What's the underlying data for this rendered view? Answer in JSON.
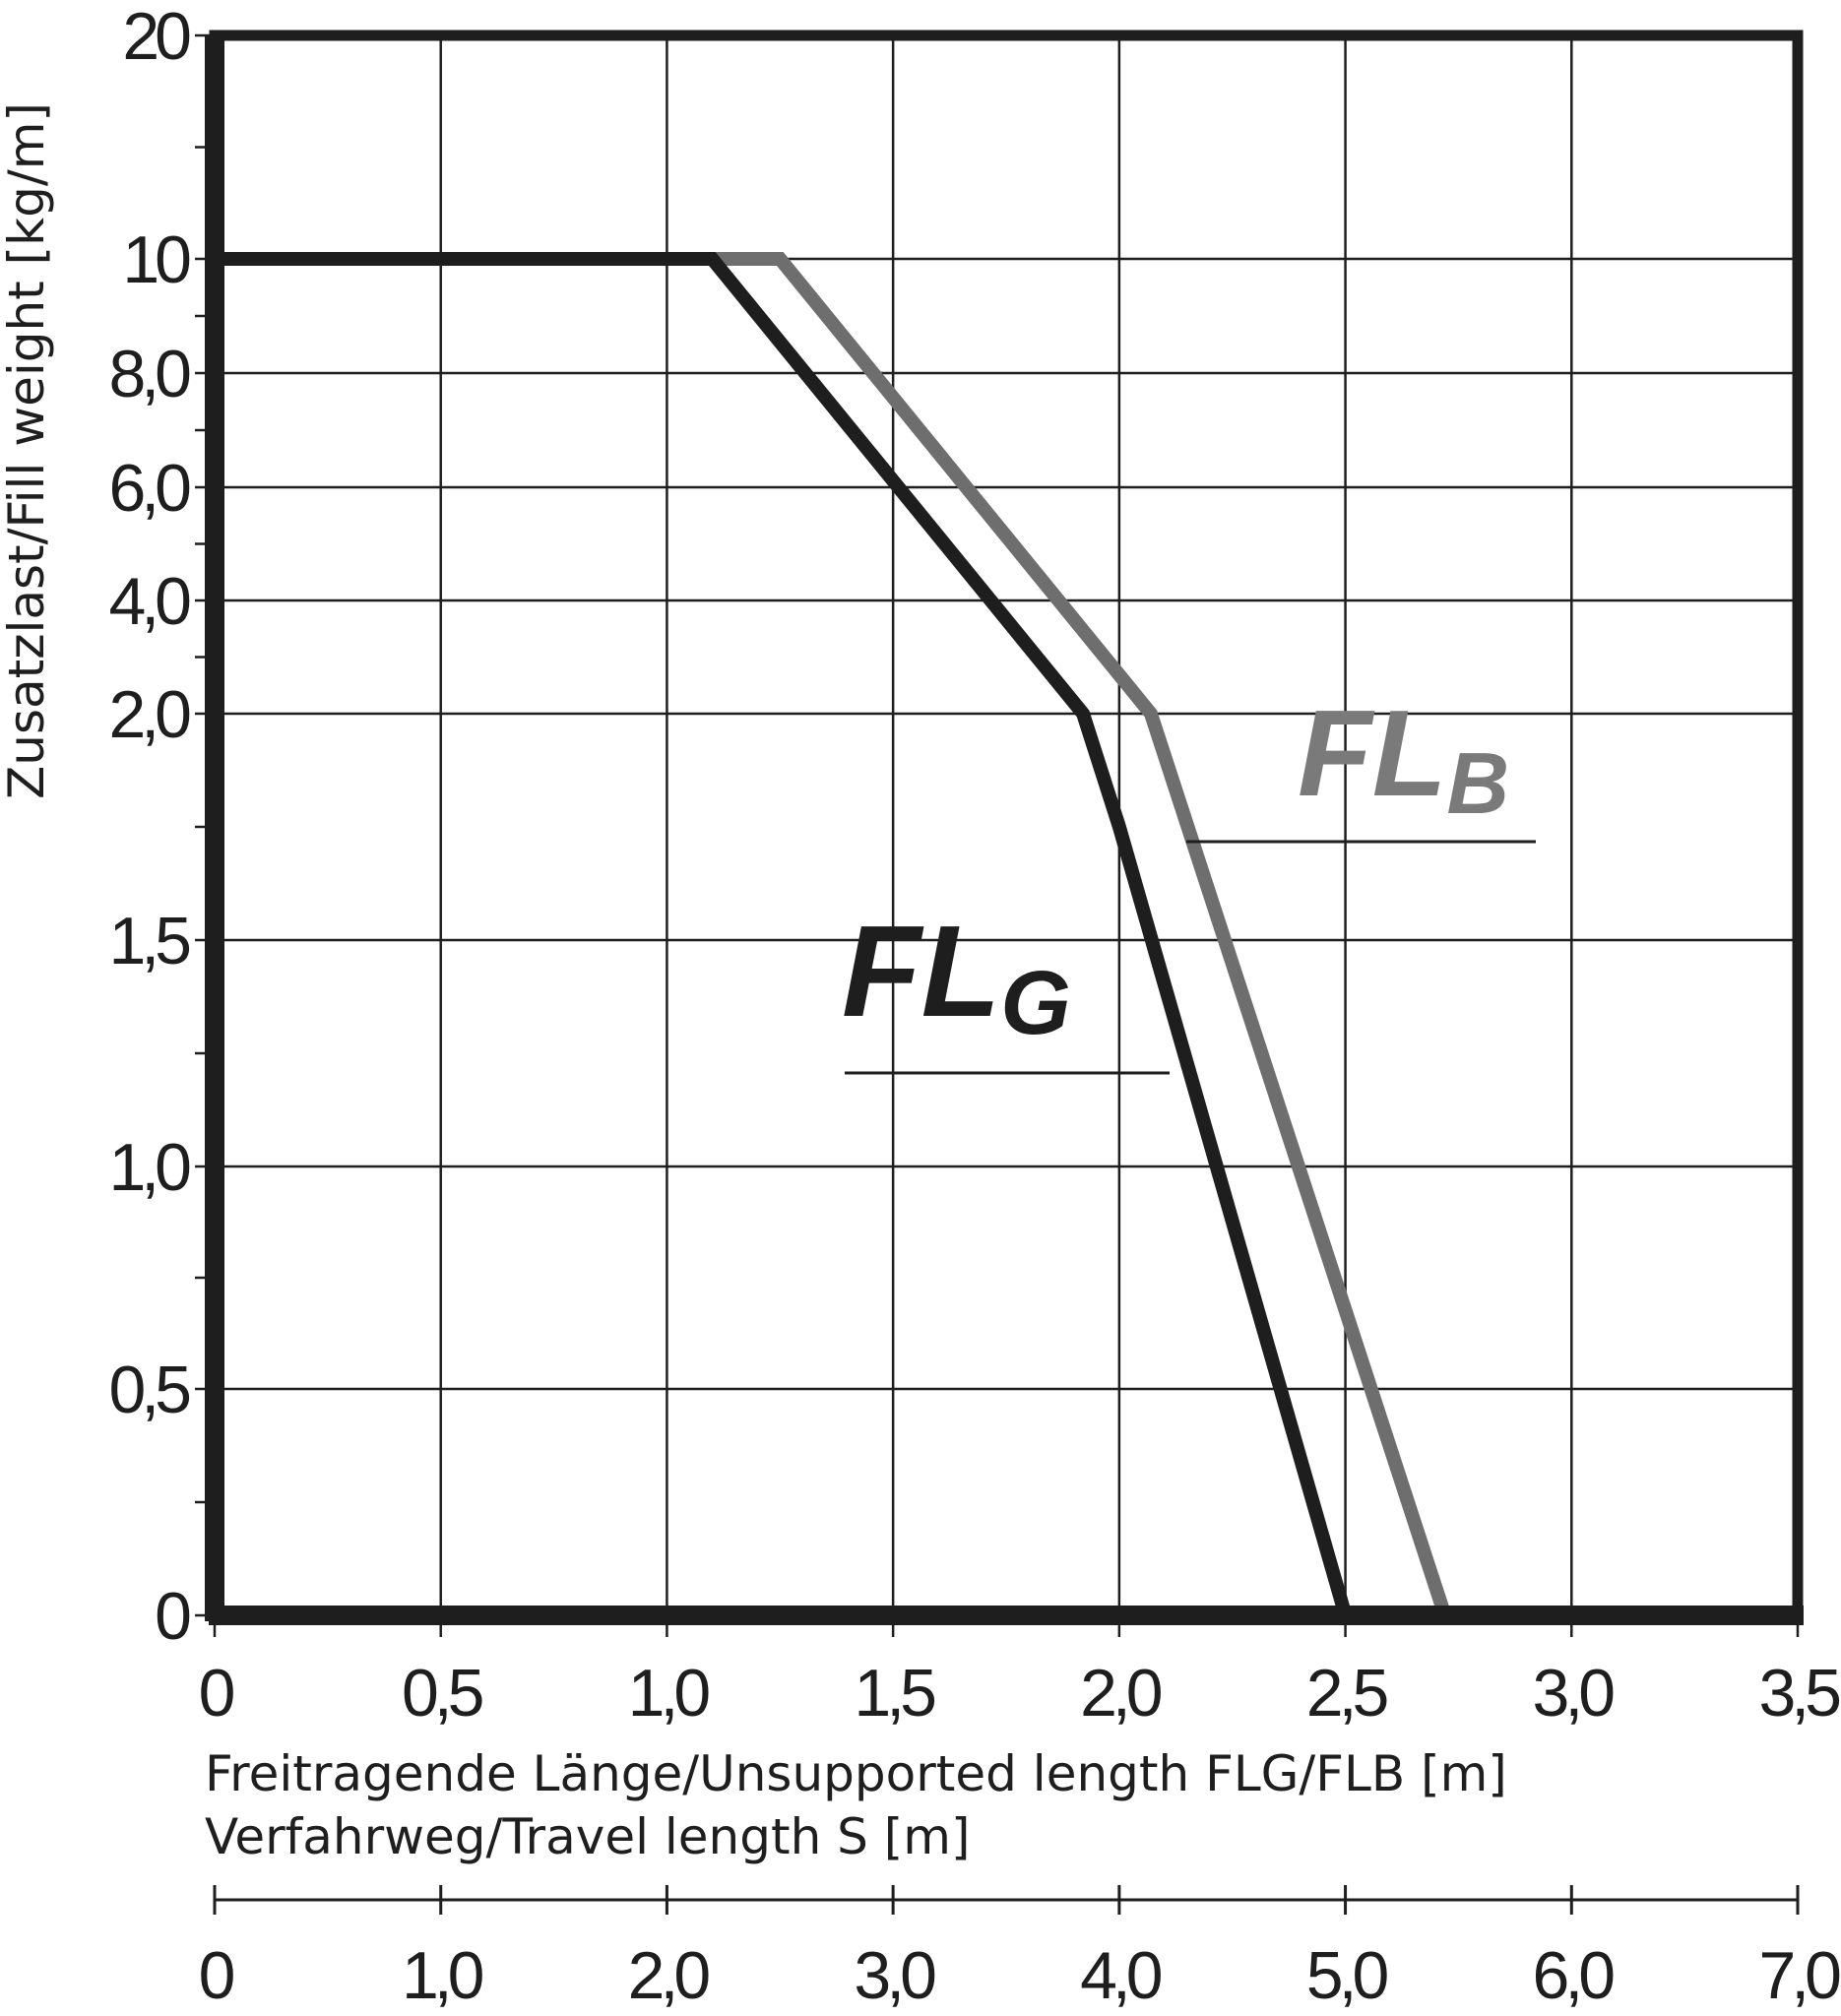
{
  "chart_data": {
    "type": "line",
    "ylabel": "Zusatzlast/Fill weight [kg/m]",
    "xlabel_line1": "Freitragende Länge/Unsupported length FLG/FLB [m]",
    "xlabel_line2": "Verfahrweg/Travel length S [m]",
    "x_ticks": [
      "0",
      "0,5",
      "1,0",
      "1,5",
      "2,0",
      "2,5",
      "3,0",
      "3,5"
    ],
    "x_tick_values": [
      0,
      0.5,
      1.0,
      1.5,
      2.0,
      2.5,
      3.0,
      3.5
    ],
    "x2_ticks": [
      "0",
      "1,0",
      "2,0",
      "3,0",
      "4,0",
      "5,0",
      "6,0",
      "7,0"
    ],
    "y_ticks": [
      "0",
      "0,5",
      "1,0",
      "1,5",
      "2,0",
      "4,0",
      "6,0",
      "8,0",
      "10",
      "20"
    ],
    "xlim": [
      0,
      3.5
    ],
    "grid": true,
    "colors": {
      "FLG": "#1e1e1e",
      "FLB": "#6e6e6e",
      "frame": "#1e1e1e"
    },
    "series": [
      {
        "name": "FL",
        "subscript": "G",
        "key": "FLG",
        "x": [
          0,
          1.1,
          1.92,
          2.0,
          2.5
        ],
        "y": [
          10,
          10,
          2.0,
          1.75,
          0
        ]
      },
      {
        "name": "FL",
        "subscript": "B",
        "key": "FLB",
        "x": [
          0,
          1.25,
          2.07,
          2.72
        ],
        "y": [
          10,
          10,
          2.0,
          0
        ]
      }
    ]
  }
}
